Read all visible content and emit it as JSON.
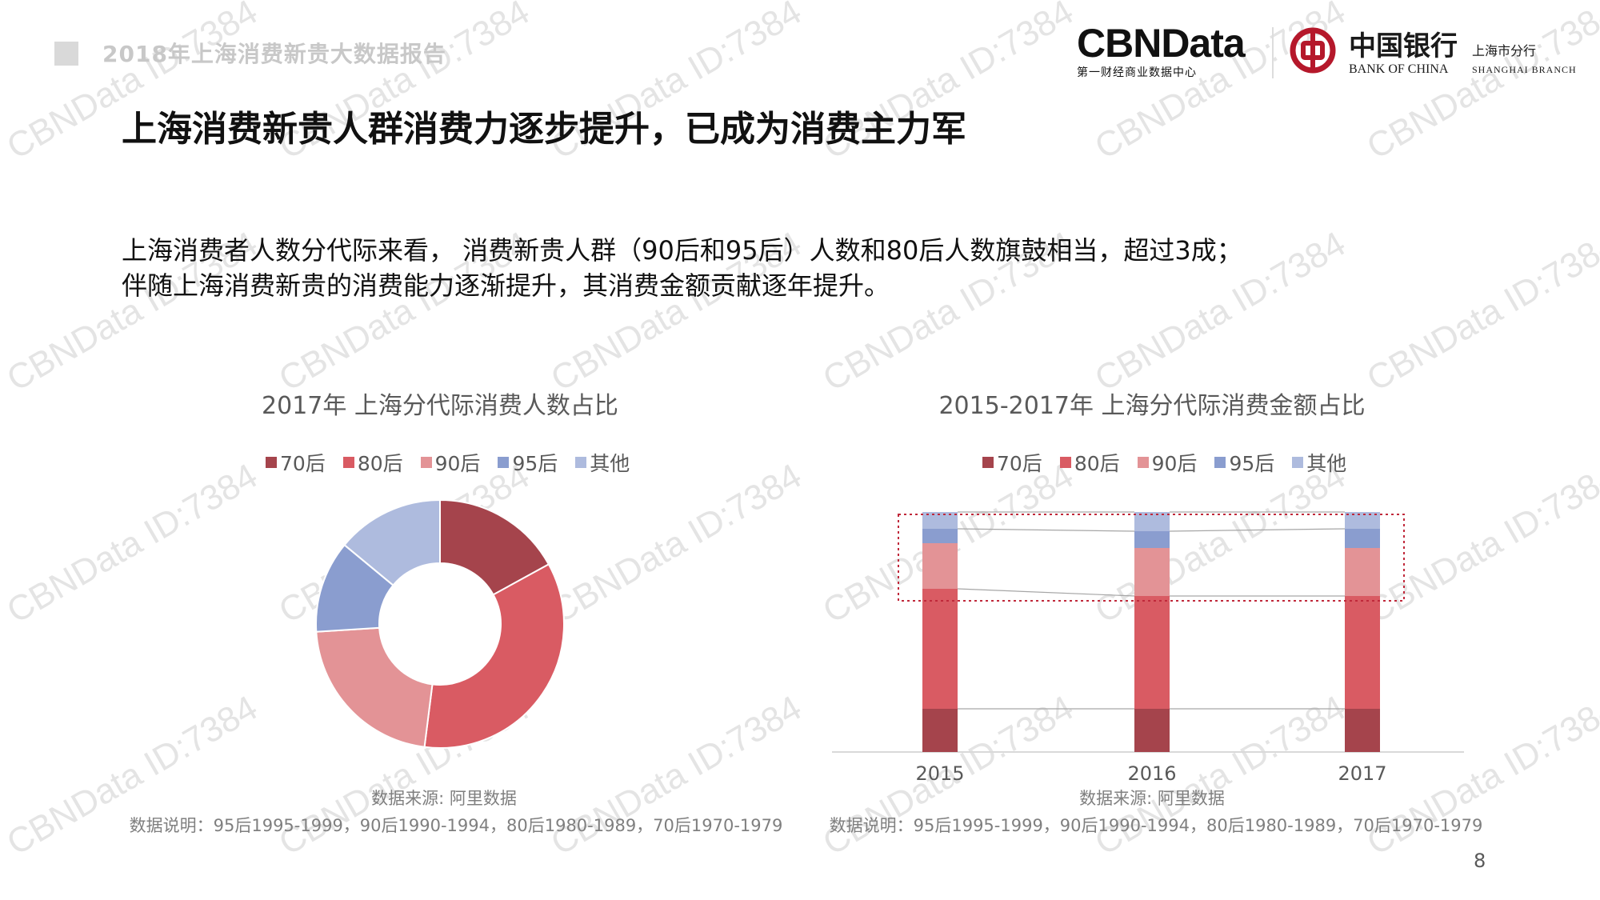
{
  "header": {
    "report_title": "2018年上海消费新贵大数据报告",
    "page_title": "上海消费新贵人群消费力逐步提升，已成为消费主力军",
    "page_number": "8"
  },
  "logos": {
    "cbn_name": "CBNData",
    "cbn_subtitle": "第一财经商业数据中心",
    "boc_cn": "中国银行",
    "boc_en": "BANK OF CHINA",
    "boc_branch_cn": "上海市分行",
    "boc_branch_en": "SHANGHAI BRANCH"
  },
  "description": {
    "line1": "上海消费者人数分代际来看， 消费新贵人群（90后和95后）人数和80后人数旗鼓相当，超过3成；",
    "line2": "伴随上海消费新贵的消费能力逐渐提升，其消费金额贡献逐年提升。"
  },
  "watermark": "CBNData ID:7384",
  "colors": {
    "70后": "#a5444c",
    "80后": "#d95b63",
    "90后": "#e39396",
    "95后": "#8a9dcf",
    "其他": "#aebbde"
  },
  "chart_data": [
    {
      "type": "pie",
      "variant": "donut",
      "title": "2017年 上海分代际消费人数占比",
      "legend": [
        "70后",
        "80后",
        "90后",
        "95后",
        "其他"
      ],
      "legend_position": "top",
      "slices": [
        {
          "label": "70后",
          "value": 17
        },
        {
          "label": "80后",
          "value": 35
        },
        {
          "label": "90后",
          "value": 22
        },
        {
          "label": "95后",
          "value": 12
        },
        {
          "label": "其他",
          "value": 14
        }
      ],
      "source": "数据来源: 阿里数据",
      "note": "数据说明：95后1995-1999，90后1990-1994，80后1980-1989，70后1970-1979"
    },
    {
      "type": "bar",
      "variant": "stacked-100",
      "title": "2015-2017年 上海分代际消费金额占比",
      "categories": [
        "2015",
        "2016",
        "2017"
      ],
      "legend": [
        "70后",
        "80后",
        "90后",
        "95后",
        "其他"
      ],
      "legend_position": "top",
      "series": [
        {
          "name": "70后",
          "values": [
            18,
            18,
            18
          ]
        },
        {
          "name": "80后",
          "values": [
            50,
            47,
            47
          ]
        },
        {
          "name": "90后",
          "values": [
            19,
            20,
            20
          ]
        },
        {
          "name": "95后",
          "values": [
            6,
            7,
            8
          ]
        },
        {
          "name": "其他",
          "values": [
            7,
            8,
            7
          ]
        }
      ],
      "ylim": [
        0,
        100
      ],
      "grid": false,
      "highlight": "90后 and 95后 segments",
      "source": "数据来源: 阿里数据",
      "note": "数据说明：95后1995-1999，90后1990-1994，80后1980-1989，70后1970-1979"
    }
  ]
}
